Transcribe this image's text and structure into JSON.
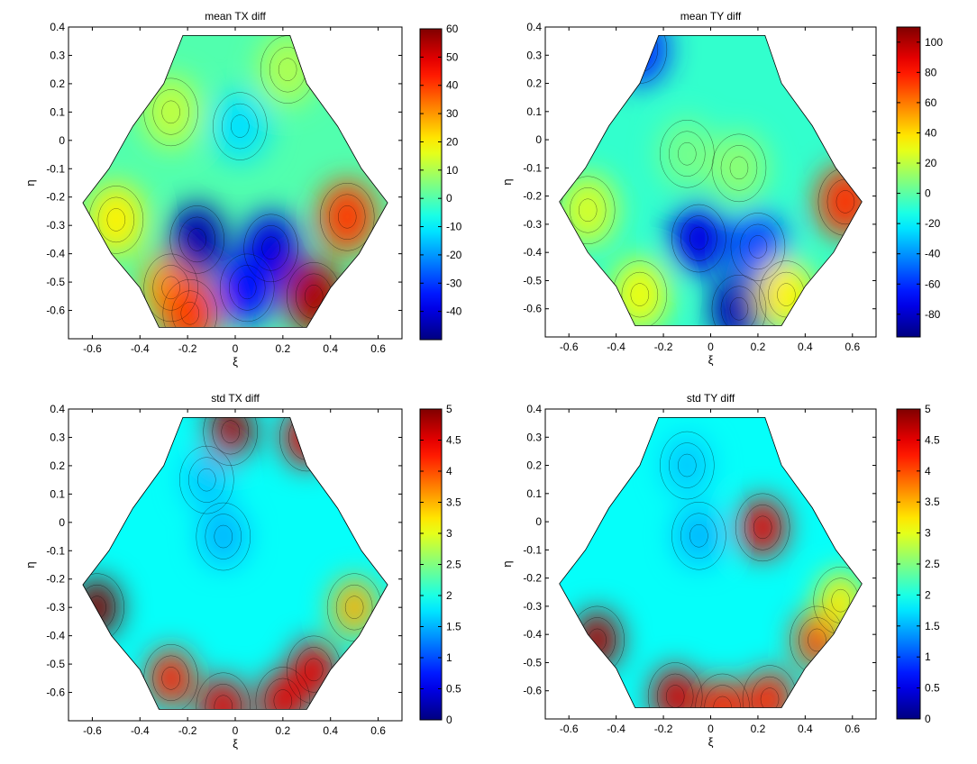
{
  "chart_data": [
    {
      "type": "contour",
      "title": "mean TX diff",
      "xlabel": "ξ",
      "ylabel": "η",
      "xlim": [
        -0.7,
        0.7
      ],
      "ylim": [
        -0.7,
        0.4
      ],
      "xticks": [
        "-0.6",
        "-0.4",
        "-0.2",
        "0",
        "0.2",
        "0.4",
        "0.6"
      ],
      "yticks": [
        "0.4",
        "0.3",
        "0.2",
        "0.1",
        "0",
        "-0.1",
        "-0.2",
        "-0.3",
        "-0.4",
        "-0.5",
        "-0.6"
      ],
      "colorbar": {
        "min": -50,
        "max": 60,
        "ticks": [
          "60",
          "50",
          "40",
          "30",
          "20",
          "10",
          "0",
          "-10",
          "-20",
          "-30",
          "-40"
        ]
      },
      "hotspots": [
        {
          "x": 0.47,
          "y": -0.27,
          "value": 40
        },
        {
          "x": -0.5,
          "y": -0.28,
          "value": 20
        },
        {
          "x": 0.33,
          "y": -0.55,
          "value": 55
        },
        {
          "x": -0.27,
          "y": -0.52,
          "value": 30
        },
        {
          "x": -0.19,
          "y": -0.61,
          "value": 40
        },
        {
          "x": -0.16,
          "y": -0.35,
          "value": -45
        },
        {
          "x": 0.15,
          "y": -0.38,
          "value": -40
        },
        {
          "x": 0.05,
          "y": -0.52,
          "value": -35
        },
        {
          "x": 0.02,
          "y": 0.05,
          "value": -12
        },
        {
          "x": 0.22,
          "y": 0.25,
          "value": 10
        },
        {
          "x": -0.27,
          "y": 0.1,
          "value": 12
        }
      ]
    },
    {
      "type": "contour",
      "title": "mean TY diff",
      "xlabel": "ξ",
      "ylabel": "η",
      "xlim": [
        -0.7,
        0.7
      ],
      "ylim": [
        -0.7,
        0.4
      ],
      "xticks": [
        "-0.6",
        "-0.4",
        "-0.2",
        "0",
        "0.2",
        "0.4",
        "0.6"
      ],
      "yticks": [
        "0.4",
        "0.3",
        "0.2",
        "0.1",
        "0",
        "-0.1",
        "-0.2",
        "-0.3",
        "-0.4",
        "-0.5",
        "-0.6"
      ],
      "colorbar": {
        "min": -95,
        "max": 110,
        "ticks": [
          "100",
          "80",
          "60",
          "40",
          "20",
          "0",
          "-20",
          "-40",
          "-60",
          "-80"
        ]
      },
      "hotspots": [
        {
          "x": 0.57,
          "y": -0.22,
          "value": 75
        },
        {
          "x": -0.52,
          "y": -0.25,
          "value": 25
        },
        {
          "x": -0.3,
          "y": 0.32,
          "value": -60
        },
        {
          "x": -0.05,
          "y": -0.35,
          "value": -75
        },
        {
          "x": 0.12,
          "y": -0.6,
          "value": -85
        },
        {
          "x": 0.2,
          "y": -0.38,
          "value": -55
        },
        {
          "x": 0.12,
          "y": -0.1,
          "value": 10
        },
        {
          "x": -0.1,
          "y": -0.05,
          "value": 5
        },
        {
          "x": -0.3,
          "y": -0.55,
          "value": 30
        },
        {
          "x": 0.32,
          "y": -0.55,
          "value": 35
        }
      ]
    },
    {
      "type": "contour",
      "title": "std TX diff",
      "xlabel": "ξ",
      "ylabel": "η",
      "xlim": [
        -0.7,
        0.7
      ],
      "ylim": [
        -0.7,
        0.4
      ],
      "xticks": [
        "-0.6",
        "-0.4",
        "-0.2",
        "0",
        "0.2",
        "0.4",
        "0.6"
      ],
      "yticks": [
        "0.4",
        "0.3",
        "0.2",
        "0.1",
        "0",
        "-0.1",
        "-0.2",
        "-0.3",
        "-0.4",
        "-0.5",
        "-0.6"
      ],
      "colorbar": {
        "min": 0,
        "max": 5,
        "ticks": [
          "5",
          "4.5",
          "4",
          "3.5",
          "3",
          "2.5",
          "2",
          "1.5",
          "1",
          "0.5",
          "0"
        ]
      },
      "hotspots": [
        {
          "x": -0.58,
          "y": -0.3,
          "value": 5
        },
        {
          "x": -0.02,
          "y": 0.32,
          "value": 4.8
        },
        {
          "x": 0.3,
          "y": 0.3,
          "value": 4.5
        },
        {
          "x": -0.05,
          "y": -0.65,
          "value": 4.5
        },
        {
          "x": 0.2,
          "y": -0.63,
          "value": 4.5
        },
        {
          "x": -0.27,
          "y": -0.55,
          "value": 4.2
        },
        {
          "x": 0.33,
          "y": -0.52,
          "value": 4.5
        },
        {
          "x": 0.5,
          "y": -0.3,
          "value": 3.5
        },
        {
          "x": -0.05,
          "y": -0.05,
          "value": 1.5
        },
        {
          "x": -0.12,
          "y": 0.15,
          "value": 1.6
        }
      ]
    },
    {
      "type": "contour",
      "title": "std TY diff",
      "xlabel": "ξ",
      "ylabel": "η",
      "xlim": [
        -0.7,
        0.7
      ],
      "ylim": [
        -0.7,
        0.4
      ],
      "xticks": [
        "-0.6",
        "-0.4",
        "-0.2",
        "0",
        "0.2",
        "0.4",
        "0.6"
      ],
      "yticks": [
        "0.4",
        "0.3",
        "0.2",
        "0.1",
        "0",
        "-0.1",
        "-0.2",
        "-0.3",
        "-0.4",
        "-0.5",
        "-0.6"
      ],
      "colorbar": {
        "min": 0,
        "max": 5,
        "ticks": [
          "5",
          "4.5",
          "4",
          "3.5",
          "3",
          "2.5",
          "2",
          "1.5",
          "1",
          "0.5",
          "0"
        ]
      },
      "hotspots": [
        {
          "x": -0.15,
          "y": -0.62,
          "value": 4.6
        },
        {
          "x": -0.48,
          "y": -0.42,
          "value": 4.8
        },
        {
          "x": 0.05,
          "y": -0.66,
          "value": 4.2
        },
        {
          "x": 0.25,
          "y": -0.63,
          "value": 4.2
        },
        {
          "x": 0.22,
          "y": -0.02,
          "value": 4.5
        },
        {
          "x": 0.45,
          "y": -0.42,
          "value": 4.0
        },
        {
          "x": 0.55,
          "y": -0.28,
          "value": 3.2
        },
        {
          "x": -0.05,
          "y": -0.05,
          "value": 1.5
        },
        {
          "x": -0.1,
          "y": 0.2,
          "value": 1.6
        }
      ]
    }
  ]
}
